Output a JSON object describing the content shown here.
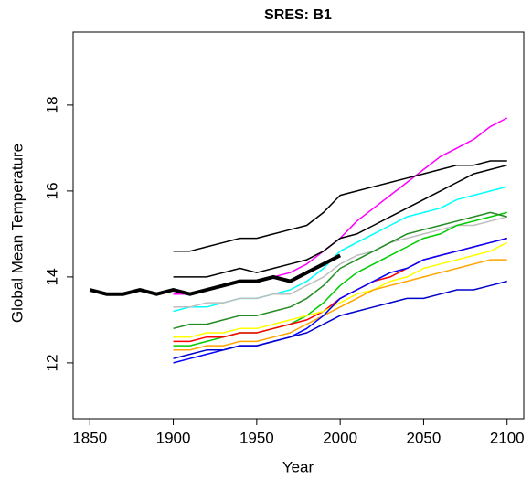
{
  "chart_data": {
    "type": "line",
    "title": "SRES: B1",
    "x_label": "Year",
    "y_label": "Global Mean Temperature",
    "xlim": [
      1840,
      2110
    ],
    "ylim": [
      10.7,
      19.7
    ],
    "xticks": [
      1850,
      1900,
      1950,
      2000,
      2050,
      2100
    ],
    "yticks": [
      12,
      14,
      16,
      18
    ],
    "x": [
      1900,
      1910,
      1920,
      1930,
      1940,
      1950,
      1960,
      1970,
      1980,
      1990,
      2000,
      2010,
      2020,
      2030,
      2040,
      2050,
      2060,
      2070,
      2080,
      2090,
      2100
    ],
    "series": [
      {
        "color": "#ff00ff",
        "values": [
          13.6,
          13.6,
          13.7,
          13.8,
          13.9,
          13.9,
          14.0,
          14.1,
          14.3,
          14.6,
          14.9,
          15.3,
          15.6,
          15.9,
          16.2,
          16.5,
          16.8,
          17.0,
          17.2,
          17.5,
          17.7
        ]
      },
      {
        "color": "#000000",
        "values": [
          14.6,
          14.6,
          14.7,
          14.8,
          14.9,
          14.9,
          15.0,
          15.1,
          15.2,
          15.5,
          15.9,
          16.0,
          16.1,
          16.2,
          16.3,
          16.4,
          16.5,
          16.6,
          16.6,
          16.7,
          16.7
        ]
      },
      {
        "color": "#000000",
        "values": [
          14.0,
          14.0,
          14.0,
          14.1,
          14.2,
          14.1,
          14.2,
          14.3,
          14.4,
          14.6,
          14.9,
          15.0,
          15.2,
          15.4,
          15.6,
          15.8,
          16.0,
          16.2,
          16.4,
          16.5,
          16.6
        ]
      },
      {
        "color": "#00ffff",
        "values": [
          13.2,
          13.3,
          13.3,
          13.4,
          13.5,
          13.5,
          13.6,
          13.7,
          13.9,
          14.2,
          14.6,
          14.8,
          15.0,
          15.2,
          15.4,
          15.5,
          15.6,
          15.8,
          15.9,
          16.0,
          16.1
        ]
      },
      {
        "color": "#bebebe",
        "values": [
          13.3,
          13.3,
          13.4,
          13.4,
          13.5,
          13.5,
          13.6,
          13.6,
          13.8,
          14.0,
          14.3,
          14.5,
          14.6,
          14.8,
          14.9,
          15.0,
          15.1,
          15.2,
          15.2,
          15.3,
          15.4
        ]
      },
      {
        "color": "#00cd00",
        "values": [
          12.4,
          12.4,
          12.5,
          12.6,
          12.7,
          12.7,
          12.8,
          12.9,
          13.1,
          13.4,
          13.8,
          14.1,
          14.3,
          14.5,
          14.7,
          14.9,
          15.0,
          15.2,
          15.3,
          15.4,
          15.5
        ]
      },
      {
        "color": "#228b22",
        "values": [
          12.8,
          12.9,
          12.9,
          13.0,
          13.1,
          13.1,
          13.2,
          13.3,
          13.5,
          13.8,
          14.2,
          14.4,
          14.6,
          14.8,
          15.0,
          15.1,
          15.2,
          15.3,
          15.4,
          15.5,
          15.4
        ]
      },
      {
        "color": "#ff0000",
        "values": [
          12.5,
          12.5,
          12.6,
          12.6,
          12.7,
          12.7,
          12.8,
          12.9,
          13.0,
          13.2,
          13.5,
          13.7,
          13.9,
          14.0,
          14.2,
          14.4,
          14.5,
          14.6,
          14.7,
          14.8,
          14.9
        ]
      },
      {
        "color": "#ffff00",
        "values": [
          12.6,
          12.6,
          12.7,
          12.7,
          12.8,
          12.8,
          12.9,
          13.0,
          13.1,
          13.2,
          13.4,
          13.6,
          13.7,
          13.9,
          14.0,
          14.2,
          14.3,
          14.4,
          14.5,
          14.6,
          14.8
        ]
      },
      {
        "color": "#ffa500",
        "values": [
          12.3,
          12.3,
          12.4,
          12.4,
          12.5,
          12.5,
          12.6,
          12.7,
          12.9,
          13.1,
          13.3,
          13.5,
          13.7,
          13.8,
          13.9,
          14.0,
          14.1,
          14.2,
          14.3,
          14.4,
          14.4
        ]
      },
      {
        "color": "#0000ff",
        "values": [
          12.0,
          12.1,
          12.2,
          12.3,
          12.4,
          12.4,
          12.5,
          12.6,
          12.8,
          13.1,
          13.5,
          13.7,
          13.9,
          14.1,
          14.2,
          14.4,
          14.5,
          14.6,
          14.7,
          14.8,
          14.9
        ]
      },
      {
        "color": "#0000cd",
        "values": [
          12.1,
          12.2,
          12.3,
          12.3,
          12.4,
          12.4,
          12.5,
          12.6,
          12.7,
          12.9,
          13.1,
          13.2,
          13.3,
          13.4,
          13.5,
          13.5,
          13.6,
          13.7,
          13.7,
          13.8,
          13.9
        ]
      },
      {
        "color": "#000000",
        "width": 4,
        "x": [
          1850,
          1860,
          1870,
          1880,
          1890,
          1900,
          1910,
          1920,
          1930,
          1940,
          1950,
          1960,
          1970,
          1980,
          1990,
          2000
        ],
        "values": [
          13.7,
          13.6,
          13.6,
          13.7,
          13.6,
          13.7,
          13.6,
          13.7,
          13.8,
          13.9,
          13.9,
          14.0,
          13.9,
          14.1,
          14.3,
          14.5
        ]
      }
    ]
  }
}
